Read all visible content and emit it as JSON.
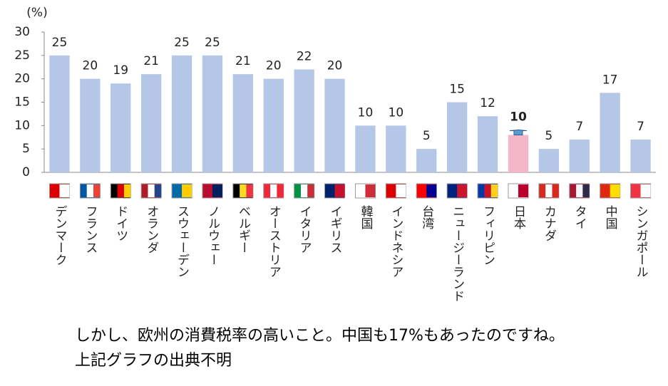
{
  "chart_data": {
    "type": "bar",
    "y_label": "(%)",
    "categories": [
      "デンマーク",
      "フランス",
      "ドイツ",
      "オランダ",
      "スウェーデン",
      "ノルウェー",
      "ベルギー",
      "オーストリア",
      "イタリア",
      "イギリス",
      "韓国",
      "インドネシア",
      "台湾",
      "ニュージーランド",
      "フィリピン",
      "日本",
      "カナダ",
      "タイ",
      "中国",
      "シンガポール"
    ],
    "values": [
      25,
      20,
      19,
      21,
      25,
      25,
      21,
      20,
      22,
      20,
      10,
      10,
      5,
      15,
      12,
      8,
      5,
      7,
      17,
      7
    ],
    "show_value_labels": [
      true,
      true,
      true,
      true,
      true,
      true,
      true,
      true,
      true,
      true,
      true,
      true,
      true,
      true,
      true,
      false,
      true,
      true,
      true,
      true
    ],
    "target_values": [
      null,
      null,
      null,
      null,
      null,
      null,
      null,
      null,
      null,
      null,
      null,
      null,
      null,
      null,
      null,
      10,
      null,
      null,
      null,
      null
    ],
    "colors": [
      "#b4c7e7",
      "#b4c7e7",
      "#b4c7e7",
      "#b4c7e7",
      "#b4c7e7",
      "#b4c7e7",
      "#b4c7e7",
      "#b4c7e7",
      "#b4c7e7",
      "#b4c7e7",
      "#b4c7e7",
      "#b4c7e7",
      "#b4c7e7",
      "#b4c7e7",
      "#b4c7e7",
      "#f4b6c8",
      "#b4c7e7",
      "#b4c7e7",
      "#b4c7e7",
      "#b4c7e7"
    ],
    "arrow_color": "#5b9bd5",
    "ylim": [
      0,
      30
    ],
    "yticks": [
      0,
      5,
      10,
      15,
      20,
      25,
      30
    ],
    "caption": [
      "しかし、欧州の消費税率の高いこと。中国も17%もあったのですね。",
      "上記グラフの出典不明"
    ]
  }
}
